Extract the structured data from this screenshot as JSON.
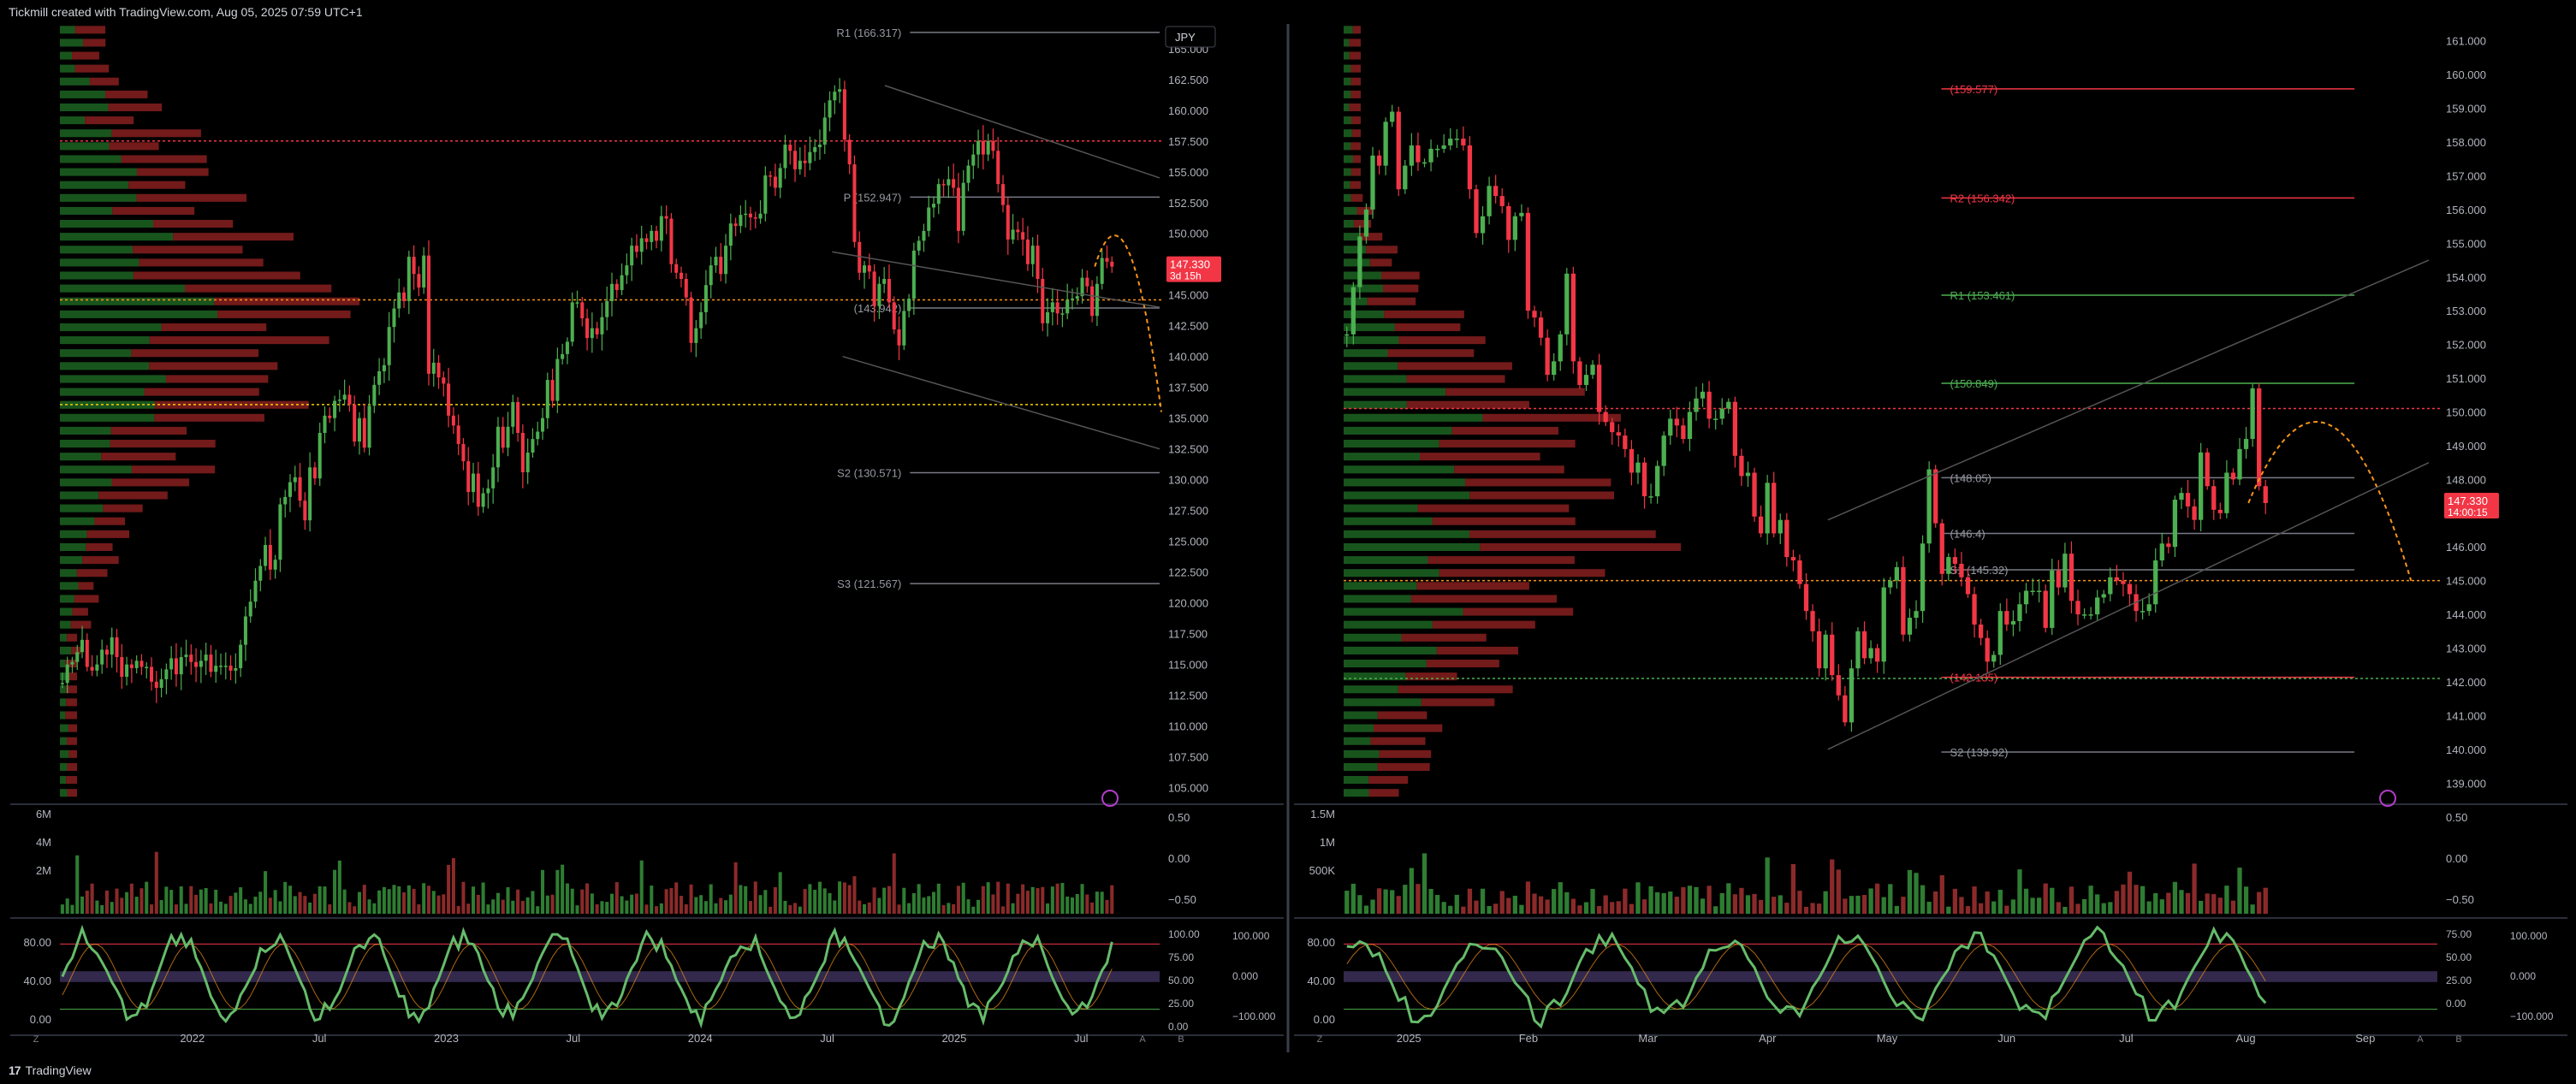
{
  "header": {
    "text": "Tickmill created with TradingView.com, Aug 05, 2025 07:59 UTC+1"
  },
  "footer": {
    "logo": "17",
    "brand": "TradingView"
  },
  "colors": {
    "up": "#4caf50",
    "down": "#f23645",
    "accent": "#f7931a",
    "bg": "#000000",
    "grid": "#2a2e39",
    "text": "#b2b5be",
    "price_tag": "#f23645"
  },
  "chart_data": [
    {
      "type": "candlestick",
      "pane": "left-main",
      "currency_badge": "JPY",
      "y_ticks": [
        "165.000",
        "162.500",
        "160.000",
        "157.500",
        "155.000",
        "152.500",
        "150.000",
        "147.500",
        "145.000",
        "142.500",
        "140.000",
        "137.500",
        "135.000",
        "132.500",
        "130.000",
        "127.500",
        "125.000",
        "122.500",
        "120.000",
        "117.500",
        "115.000",
        "112.500",
        "110.000",
        "107.500",
        "105.000"
      ],
      "ylim": [
        104,
        167
      ],
      "x_ticks": [
        "2022",
        "Jul",
        "2023",
        "Jul",
        "2024",
        "Jul",
        "2025",
        "Jul"
      ],
      "last_price": "147.330",
      "countdown": "3d 15h",
      "levels": [
        {
          "label": "R1 (166.317)",
          "value": 166.317
        },
        {
          "label": "P (152.947)",
          "value": 152.947
        },
        {
          "label": "(143.942)",
          "value": 143.942
        },
        {
          "label": "S2 (130.571)",
          "value": 130.571
        },
        {
          "label": "S3 (121.567)",
          "value": 121.567
        }
      ],
      "hlines": [
        157.5,
        144.6,
        136.1
      ],
      "close": [
        113.5,
        115.0,
        115.2,
        116.0,
        117.0,
        114.8,
        114.5,
        115.0,
        116.2,
        115.8,
        117.2,
        115.6,
        114.0,
        115.0,
        114.7,
        115.3,
        114.8,
        114.8,
        113.6,
        113.1,
        113.8,
        114.6,
        115.5,
        114.2,
        115.6,
        115.8,
        115.2,
        114.8,
        115.3,
        115.8,
        114.4,
        114.9,
        114.9,
        114.9,
        114.5,
        114.7,
        116.6,
        118.9,
        120.1,
        121.8,
        123.0,
        124.7,
        122.7,
        123.5,
        128.0,
        128.6,
        129.8,
        130.2,
        128.3,
        126.7,
        131.0,
        130.1,
        133.8,
        135.2,
        135.0,
        136.4,
        136.5,
        136.9,
        136.1,
        133.1,
        135.0,
        132.6,
        136.0,
        137.7,
        138.8,
        139.3,
        142.4,
        143.9,
        145.2,
        144.5,
        148.1,
        146.7,
        145.6,
        148.2,
        138.6,
        139.5,
        138.3,
        137.8,
        135.2,
        134.4,
        132.9,
        131.5,
        129.0,
        130.5,
        127.8,
        128.9,
        129.3,
        131.0,
        134.3,
        132.6,
        134.3,
        136.3,
        133.8,
        130.6,
        132.2,
        133.3,
        133.9,
        135.0,
        138.1,
        136.4,
        139.8,
        140.2,
        141.2,
        144.4,
        144.4,
        143.1,
        141.5,
        142.3,
        141.8,
        143.2,
        144.5,
        145.9,
        145.4,
        146.6,
        147.4,
        149.0,
        148.5,
        149.6,
        149.3,
        150.2,
        149.4,
        151.4,
        151.2,
        147.5,
        146.8,
        146.3,
        144.8,
        141.1,
        142.3,
        143.6,
        145.8,
        147.4,
        148.1,
        146.7,
        149.0,
        150.8,
        150.6,
        151.5,
        151.6,
        151.3,
        151.2,
        151.6,
        154.7,
        154.6,
        153.7,
        155.3,
        157.2,
        156.7,
        155.2,
        155.9,
        155.7,
        156.6,
        157.0,
        157.2,
        159.4,
        160.8,
        161.5,
        161.7,
        157.6,
        155.6,
        149.3,
        146.8,
        147.4,
        146.9,
        144.1,
        145.9,
        146.3,
        144.4,
        142.2,
        140.9,
        143.7,
        144.7,
        148.6,
        149.4,
        150.2,
        152.1,
        152.4,
        154.0,
        153.9,
        154.4,
        153.7,
        150.2,
        154.1,
        155.5,
        156.4,
        157.5,
        156.4,
        157.5,
        156.7,
        154.0,
        152.3,
        149.5,
        150.3,
        150.1,
        149.5,
        147.5,
        149.0,
        146.3,
        142.7,
        143.6,
        144.4,
        143.5,
        143.5,
        144.6,
        144.7,
        144.9,
        146.4,
        145.7,
        143.3,
        145.9,
        148.0,
        147.7,
        147.3
      ],
      "subpanes": {
        "volume_labels": [
          "6M",
          "4M",
          "2M"
        ],
        "volume_right_labels": [
          "0.50",
          "0.00",
          "−0.50"
        ],
        "osc_left_labels": [
          "80.00",
          "40.00",
          "0.00"
        ],
        "osc_right_labels": [
          "100.00",
          "75.00",
          "50.00",
          "25.00",
          "0.00"
        ],
        "osc_right_labels2": [
          "100.000",
          "0.000",
          "−100.000"
        ]
      }
    },
    {
      "type": "candlestick",
      "pane": "right-main",
      "y_ticks": [
        "161.000",
        "160.000",
        "159.000",
        "158.000",
        "157.000",
        "156.000",
        "155.000",
        "154.000",
        "153.000",
        "152.000",
        "151.000",
        "150.000",
        "149.000",
        "148.000",
        "147.000",
        "146.000",
        "145.000",
        "144.000",
        "143.000",
        "142.000",
        "141.000",
        "140.000",
        "139.000"
      ],
      "ylim": [
        138.5,
        161.5
      ],
      "x_ticks": [
        "2025",
        "Feb",
        "Mar",
        "Apr",
        "May",
        "Jun",
        "Jul",
        "Aug",
        "Sep"
      ],
      "last_price": "147.330",
      "countdown": "14:00:15",
      "levels": [
        {
          "label": "(159.577)",
          "value": 159.577,
          "color": "#f23645"
        },
        {
          "label": "R2 (156.342)",
          "value": 156.342,
          "color": "#f23645"
        },
        {
          "label": "R1 (153.461)",
          "value": 153.461,
          "color": "#4caf50"
        },
        {
          "label": "(150.849)",
          "value": 150.849,
          "color": "#4caf50"
        },
        {
          "label": "(148.05)",
          "value": 148.05
        },
        {
          "label": "(146.4)",
          "value": 146.4
        },
        {
          "label": "S1 (145.32)",
          "value": 145.32
        },
        {
          "label": "(142.135)",
          "value": 142.135,
          "color": "#f23645"
        },
        {
          "label": "S2 (139.92)",
          "value": 139.92
        }
      ],
      "hlines": [
        150.1,
        145.0,
        142.1
      ],
      "close": [
        152.3,
        153.7,
        155.2,
        156.0,
        157.6,
        157.3,
        158.6,
        158.9,
        156.6,
        157.3,
        157.9,
        157.4,
        157.4,
        157.8,
        157.8,
        157.9,
        158.1,
        158.1,
        157.9,
        156.6,
        155.3,
        155.8,
        156.7,
        156.4,
        156.1,
        155.1,
        155.8,
        155.9,
        153.0,
        152.8,
        152.2,
        151.1,
        151.5,
        152.3,
        154.1,
        151.5,
        150.8,
        151.1,
        151.4,
        150.0,
        149.7,
        149.4,
        149.3,
        148.9,
        148.2,
        148.5,
        147.5,
        147.5,
        148.4,
        149.3,
        149.8,
        149.6,
        149.2,
        150.0,
        150.4,
        150.6,
        149.8,
        149.8,
        150.1,
        150.3,
        148.7,
        148.1,
        148.2,
        146.9,
        146.4,
        147.9,
        146.4,
        146.8,
        145.7,
        145.6,
        144.9,
        144.1,
        143.5,
        142.4,
        143.4,
        142.2,
        141.6,
        140.8,
        142.4,
        143.5,
        142.7,
        143.0,
        142.6,
        144.8,
        145.0,
        145.4,
        143.4,
        143.9,
        144.1,
        146.1,
        148.3,
        146.7,
        145.2,
        145.7,
        145.5,
        145.1,
        144.6,
        143.7,
        143.3,
        142.6,
        142.8,
        144.1,
        143.7,
        143.8,
        144.3,
        144.7,
        144.7,
        144.7,
        143.6,
        145.3,
        144.8,
        145.8,
        144.4,
        144.0,
        144.0,
        144.0,
        144.5,
        144.6,
        145.1,
        145.0,
        144.9,
        144.6,
        144.1,
        144.1,
        144.3,
        145.6,
        146.1,
        146.0,
        147.4,
        147.6,
        147.2,
        146.8,
        148.8,
        147.8,
        147.1,
        147.0,
        148.2,
        148.0,
        148.9,
        149.2,
        150.7,
        147.8,
        147.3
      ],
      "subpanes": {
        "volume_labels": [
          "1.5M",
          "1M",
          "500K"
        ],
        "volume_right_labels": [
          "0.50",
          "0.00",
          "−0.50"
        ],
        "osc_left_labels": [
          "80.00",
          "40.00",
          "0.00"
        ],
        "osc_right_labels": [
          "75.00",
          "50.00",
          "25.00",
          "0.00"
        ],
        "osc_right_labels2": [
          "100.000",
          "0.000",
          "−100.000"
        ]
      }
    }
  ]
}
